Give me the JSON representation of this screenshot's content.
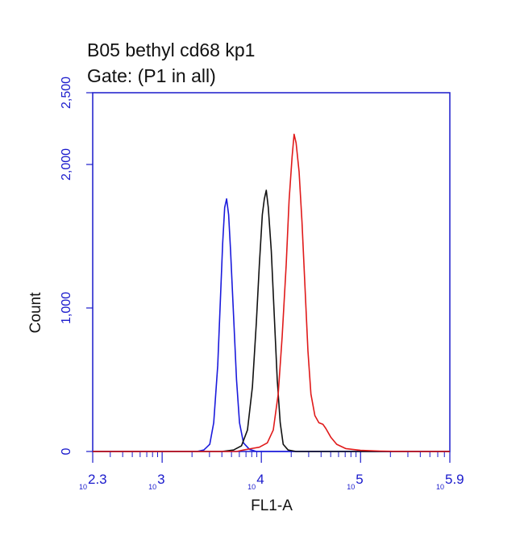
{
  "chart_data": {
    "type": "line",
    "title_lines": [
      "B05 bethyl cd68 kp1",
      "Gate: (P1 in all)"
    ],
    "xlabel": "FL1-A",
    "ylabel": "Count",
    "x_scale": "log10",
    "xlim": [
      2.3,
      5.9
    ],
    "ylim": [
      0,
      2500
    ],
    "yticks": [
      {
        "value": 0,
        "label": "0"
      },
      {
        "value": 1000,
        "label": "1,000"
      },
      {
        "value": 2000,
        "label": "2,000"
      },
      {
        "value": 2500,
        "label": "2,500"
      }
    ],
    "xticks": [
      {
        "value": 2.3,
        "base": "10",
        "exp": "2.3"
      },
      {
        "value": 3,
        "base": "10",
        "exp": "3"
      },
      {
        "value": 4,
        "base": "10",
        "exp": "4"
      },
      {
        "value": 5,
        "base": "10",
        "exp": "5"
      },
      {
        "value": 5.9,
        "base": "10",
        "exp": "5.9"
      }
    ],
    "axis_color": "#1a1acc",
    "grid": false,
    "series": [
      {
        "color": "#1a1adc",
        "points": [
          [
            2.3,
            0
          ],
          [
            3.35,
            0
          ],
          [
            3.42,
            10
          ],
          [
            3.48,
            50
          ],
          [
            3.52,
            200
          ],
          [
            3.56,
            600
          ],
          [
            3.59,
            1100
          ],
          [
            3.61,
            1450
          ],
          [
            3.63,
            1700
          ],
          [
            3.65,
            1760
          ],
          [
            3.67,
            1650
          ],
          [
            3.69,
            1400
          ],
          [
            3.72,
            950
          ],
          [
            3.75,
            500
          ],
          [
            3.78,
            200
          ],
          [
            3.82,
            60
          ],
          [
            3.88,
            15
          ],
          [
            3.95,
            0
          ],
          [
            5.9,
            0
          ]
        ]
      },
      {
        "color": "#111111",
        "points": [
          [
            2.3,
            0
          ],
          [
            3.6,
            0
          ],
          [
            3.72,
            10
          ],
          [
            3.8,
            40
          ],
          [
            3.86,
            150
          ],
          [
            3.91,
            450
          ],
          [
            3.95,
            900
          ],
          [
            3.98,
            1300
          ],
          [
            4.01,
            1650
          ],
          [
            4.03,
            1760
          ],
          [
            4.05,
            1820
          ],
          [
            4.07,
            1700
          ],
          [
            4.1,
            1400
          ],
          [
            4.13,
            950
          ],
          [
            4.16,
            500
          ],
          [
            4.19,
            200
          ],
          [
            4.22,
            50
          ],
          [
            4.27,
            10
          ],
          [
            4.35,
            0
          ],
          [
            5.9,
            0
          ]
        ]
      },
      {
        "color": "#e01a1a",
        "points": [
          [
            2.3,
            0
          ],
          [
            3.75,
            0
          ],
          [
            3.82,
            10
          ],
          [
            3.9,
            20
          ],
          [
            3.98,
            30
          ],
          [
            4.06,
            60
          ],
          [
            4.12,
            150
          ],
          [
            4.17,
            400
          ],
          [
            4.21,
            800
          ],
          [
            4.25,
            1300
          ],
          [
            4.28,
            1750
          ],
          [
            4.31,
            2050
          ],
          [
            4.33,
            2210
          ],
          [
            4.35,
            2150
          ],
          [
            4.38,
            1950
          ],
          [
            4.41,
            1600
          ],
          [
            4.44,
            1150
          ],
          [
            4.47,
            700
          ],
          [
            4.5,
            400
          ],
          [
            4.54,
            250
          ],
          [
            4.58,
            200
          ],
          [
            4.62,
            190
          ],
          [
            4.65,
            160
          ],
          [
            4.7,
            100
          ],
          [
            4.76,
            50
          ],
          [
            4.85,
            20
          ],
          [
            5,
            8
          ],
          [
            5.2,
            3
          ],
          [
            5.45,
            0
          ],
          [
            5.9,
            0
          ]
        ]
      }
    ]
  }
}
